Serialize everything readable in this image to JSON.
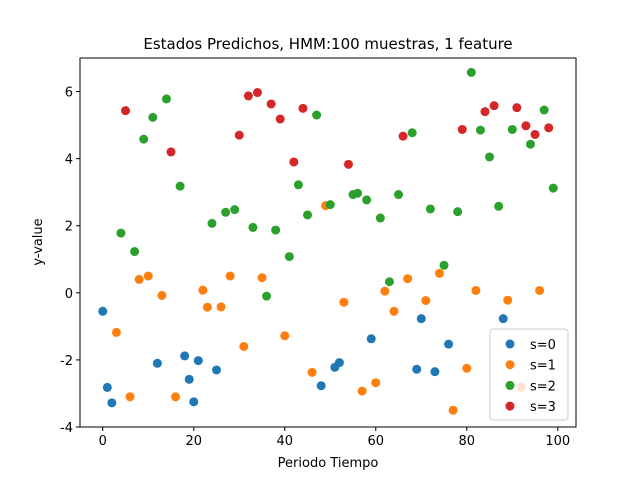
{
  "chart_data": {
    "type": "scatter",
    "title": "Estados Predichos, HMM:100 muestras, 1 feature",
    "xlabel": "Periodo Tiempo",
    "ylabel": "y-value",
    "xlim": [
      -5,
      104
    ],
    "ylim": [
      -4,
      7
    ],
    "xticks": [
      0,
      20,
      40,
      60,
      80,
      100
    ],
    "yticks": [
      -4,
      -2,
      0,
      2,
      4,
      6
    ],
    "grid": false,
    "legend_position": "lower-right",
    "series": [
      {
        "name": "s=0",
        "color": "#1f77b4",
        "points": [
          [
            0,
            -0.55
          ],
          [
            1,
            -2.82
          ],
          [
            2,
            -3.28
          ],
          [
            12,
            -2.1
          ],
          [
            18,
            -1.88
          ],
          [
            19,
            -2.58
          ],
          [
            20,
            -3.25
          ],
          [
            21,
            -2.02
          ],
          [
            25,
            -2.3
          ],
          [
            48,
            -2.77
          ],
          [
            51,
            -2.22
          ],
          [
            52,
            -2.08
          ],
          [
            59,
            -1.37
          ],
          [
            69,
            -2.28
          ],
          [
            70,
            -0.77
          ],
          [
            73,
            -2.35
          ],
          [
            76,
            -1.53
          ],
          [
            88,
            -0.77
          ],
          [
            92,
            -2.8
          ]
        ]
      },
      {
        "name": "s=1",
        "color": "#ff7f0e",
        "points": [
          [
            3,
            -1.18
          ],
          [
            6,
            -3.1
          ],
          [
            8,
            0.4
          ],
          [
            10,
            0.5
          ],
          [
            13,
            -0.08
          ],
          [
            16,
            -3.1
          ],
          [
            22,
            0.08
          ],
          [
            23,
            -0.43
          ],
          [
            26,
            -0.42
          ],
          [
            28,
            0.5
          ],
          [
            31,
            -1.6
          ],
          [
            35,
            0.45
          ],
          [
            40,
            -1.28
          ],
          [
            46,
            -2.37
          ],
          [
            49,
            2.6
          ],
          [
            53,
            -0.28
          ],
          [
            57,
            -2.93
          ],
          [
            60,
            -2.68
          ],
          [
            62,
            0.05
          ],
          [
            64,
            -0.55
          ],
          [
            67,
            0.42
          ],
          [
            71,
            -0.23
          ],
          [
            74,
            0.58
          ],
          [
            77,
            -3.5
          ],
          [
            80,
            -2.25
          ],
          [
            82,
            0.07
          ],
          [
            89,
            -0.22
          ],
          [
            92,
            -2.82
          ],
          [
            96,
            0.07
          ]
        ]
      },
      {
        "name": "s=2",
        "color": "#2ca02c",
        "points": [
          [
            4,
            1.78
          ],
          [
            7,
            1.23
          ],
          [
            9,
            4.58
          ],
          [
            11,
            5.23
          ],
          [
            14,
            5.78
          ],
          [
            17,
            3.18
          ],
          [
            24,
            2.07
          ],
          [
            27,
            2.4
          ],
          [
            29,
            2.48
          ],
          [
            33,
            1.95
          ],
          [
            36,
            -0.1
          ],
          [
            38,
            1.87
          ],
          [
            41,
            1.08
          ],
          [
            43,
            3.22
          ],
          [
            45,
            2.32
          ],
          [
            47,
            5.3
          ],
          [
            50,
            2.63
          ],
          [
            55,
            2.93
          ],
          [
            56,
            2.97
          ],
          [
            58,
            2.77
          ],
          [
            61,
            2.23
          ],
          [
            63,
            0.33
          ],
          [
            65,
            2.93
          ],
          [
            68,
            4.77
          ],
          [
            72,
            2.5
          ],
          [
            75,
            0.82
          ],
          [
            78,
            2.42
          ],
          [
            81,
            6.57
          ],
          [
            83,
            4.85
          ],
          [
            85,
            4.05
          ],
          [
            87,
            2.58
          ],
          [
            90,
            4.87
          ],
          [
            94,
            4.43
          ],
          [
            97,
            5.45
          ],
          [
            99,
            3.12
          ]
        ]
      },
      {
        "name": "s=3",
        "color": "#d62728",
        "points": [
          [
            5,
            5.43
          ],
          [
            15,
            4.2
          ],
          [
            30,
            4.7
          ],
          [
            32,
            5.87
          ],
          [
            34,
            5.97
          ],
          [
            37,
            5.63
          ],
          [
            39,
            5.18
          ],
          [
            42,
            3.9
          ],
          [
            44,
            5.5
          ],
          [
            54,
            3.83
          ],
          [
            66,
            4.67
          ],
          [
            79,
            4.87
          ],
          [
            84,
            5.4
          ],
          [
            86,
            5.58
          ],
          [
            91,
            5.52
          ],
          [
            93,
            4.98
          ],
          [
            95,
            4.72
          ],
          [
            98,
            4.92
          ]
        ]
      }
    ]
  }
}
